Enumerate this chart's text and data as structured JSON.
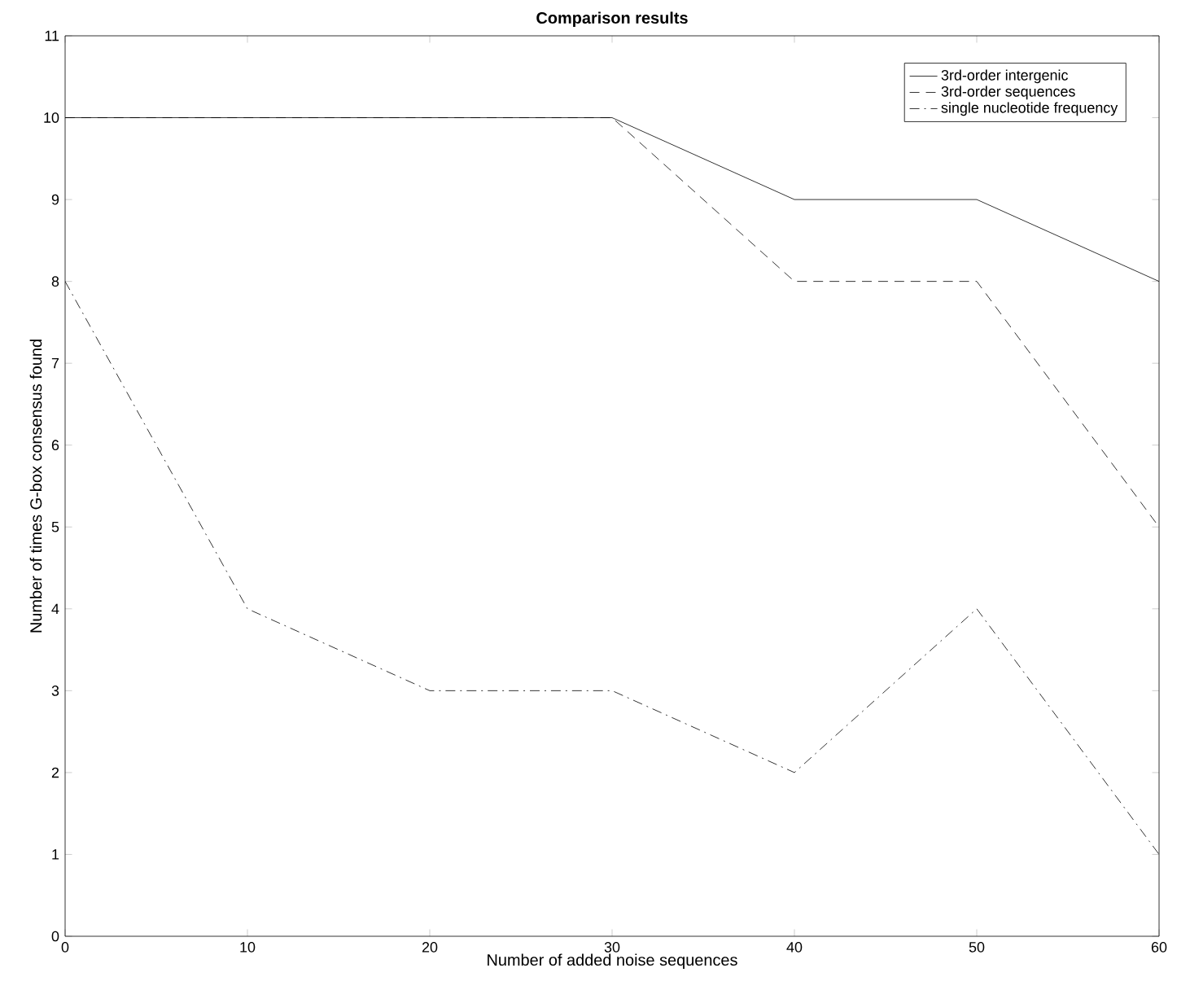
{
  "chart_data": {
    "type": "line",
    "title": "Comparison results",
    "xlabel": "Number of added noise sequences",
    "ylabel": "Number of times G-box consensus found",
    "x": [
      0,
      10,
      20,
      30,
      40,
      50,
      60
    ],
    "series": [
      {
        "name": "3rd-order intergenic",
        "color": "#000000",
        "line_style": "solid",
        "values": [
          10,
          10,
          10,
          10,
          9,
          9,
          8
        ]
      },
      {
        "name": "3rd-order sequences",
        "color": "#000000",
        "line_style": "dashed",
        "values": [
          10,
          10,
          10,
          10,
          8,
          8,
          5
        ]
      },
      {
        "name": "single nucleotide frequency",
        "color": "#000000",
        "line_style": "dashdot",
        "values": [
          8,
          4,
          3,
          3,
          2,
          4,
          1
        ]
      }
    ],
    "xlim": [
      0,
      60
    ],
    "xticks": [
      0,
      10,
      20,
      30,
      40,
      50,
      60
    ],
    "ylim": [
      0,
      11
    ],
    "yticks": [
      0,
      1,
      2,
      3,
      4,
      5,
      6,
      7,
      8,
      9,
      10,
      11
    ],
    "legend": "top right",
    "grid": false,
    "marker": "none"
  }
}
